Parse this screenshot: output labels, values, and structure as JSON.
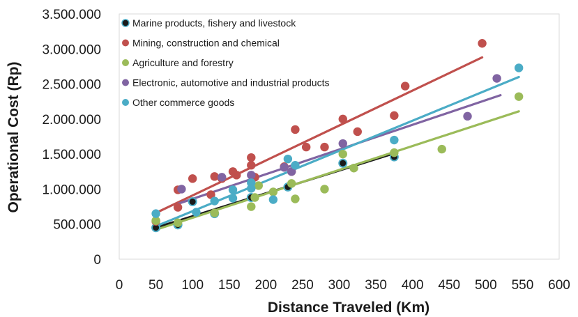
{
  "chart_data": {
    "type": "scatter",
    "title": "",
    "xlabel": "Distance Traveled (Km)",
    "ylabel": "Operational Cost (Rp)",
    "xlim": [
      0,
      600
    ],
    "ylim": [
      0,
      3500000
    ],
    "x_ticks": [
      "0",
      "50",
      "100",
      "150",
      "200",
      "250",
      "300",
      "350",
      "400",
      "450",
      "500",
      "550",
      "600"
    ],
    "y_ticks": [
      "0",
      "500.000",
      "1.000.000",
      "1.500.000",
      "2.000.000",
      "2.500.000",
      "3.000.000",
      "3.500.000"
    ],
    "grid": false,
    "legend_position": "top-left",
    "series": [
      {
        "name": "Marine products, fishery and  livestock",
        "color": "#1a1a1a",
        "points": [
          [
            50,
            450000
          ],
          [
            80,
            490000
          ],
          [
            100,
            820000
          ],
          [
            130,
            650000
          ],
          [
            180,
            880000
          ],
          [
            230,
            1030000
          ],
          [
            305,
            1370000
          ],
          [
            375,
            1460000
          ]
        ],
        "trend": [
          [
            50,
            450000
          ],
          [
            375,
            1510000
          ]
        ]
      },
      {
        "name": "Mining, construction and chemical",
        "color": "#c0504d",
        "points": [
          [
            50,
            540000
          ],
          [
            80,
            990000
          ],
          [
            80,
            740000
          ],
          [
            100,
            1150000
          ],
          [
            125,
            920000
          ],
          [
            130,
            1180000
          ],
          [
            140,
            1150000
          ],
          [
            155,
            1250000
          ],
          [
            160,
            1200000
          ],
          [
            180,
            1450000
          ],
          [
            180,
            1340000
          ],
          [
            185,
            1170000
          ],
          [
            225,
            1320000
          ],
          [
            235,
            1250000
          ],
          [
            240,
            1850000
          ],
          [
            255,
            1600000
          ],
          [
            280,
            1600000
          ],
          [
            305,
            2000000
          ],
          [
            325,
            1820000
          ],
          [
            375,
            2050000
          ],
          [
            390,
            2470000
          ],
          [
            495,
            3080000
          ]
        ],
        "trend": [
          [
            50,
            660000
          ],
          [
            495,
            2880000
          ]
        ]
      },
      {
        "name": "Agriculture and forestry",
        "color": "#9bbb59",
        "points": [
          [
            50,
            550000
          ],
          [
            80,
            520000
          ],
          [
            130,
            660000
          ],
          [
            180,
            750000
          ],
          [
            185,
            880000
          ],
          [
            190,
            1050000
          ],
          [
            210,
            960000
          ],
          [
            235,
            1080000
          ],
          [
            240,
            860000
          ],
          [
            280,
            1000000
          ],
          [
            305,
            1500000
          ],
          [
            320,
            1300000
          ],
          [
            375,
            1520000
          ],
          [
            440,
            1570000
          ],
          [
            545,
            2320000
          ]
        ],
        "trend": [
          [
            50,
            420000
          ],
          [
            545,
            2110000
          ]
        ]
      },
      {
        "name": "Electronic, automotive and industrial  products",
        "color": "#8064a2",
        "points": [
          [
            85,
            1000000
          ],
          [
            140,
            1170000
          ],
          [
            180,
            1200000
          ],
          [
            225,
            1310000
          ],
          [
            235,
            1250000
          ],
          [
            305,
            1650000
          ],
          [
            475,
            2040000
          ],
          [
            515,
            2580000
          ]
        ],
        "trend": [
          [
            80,
            790000
          ],
          [
            520,
            2340000
          ]
        ]
      },
      {
        "name": "Other commerce goods",
        "color": "#4bacc6",
        "points": [
          [
            50,
            650000
          ],
          [
            105,
            670000
          ],
          [
            130,
            830000
          ],
          [
            155,
            870000
          ],
          [
            155,
            990000
          ],
          [
            180,
            1010000
          ],
          [
            180,
            1090000
          ],
          [
            210,
            850000
          ],
          [
            230,
            1430000
          ],
          [
            240,
            1340000
          ],
          [
            375,
            1700000
          ],
          [
            545,
            2730000
          ]
        ],
        "trend": [
          [
            50,
            470000
          ],
          [
            545,
            2600000
          ]
        ]
      }
    ]
  }
}
